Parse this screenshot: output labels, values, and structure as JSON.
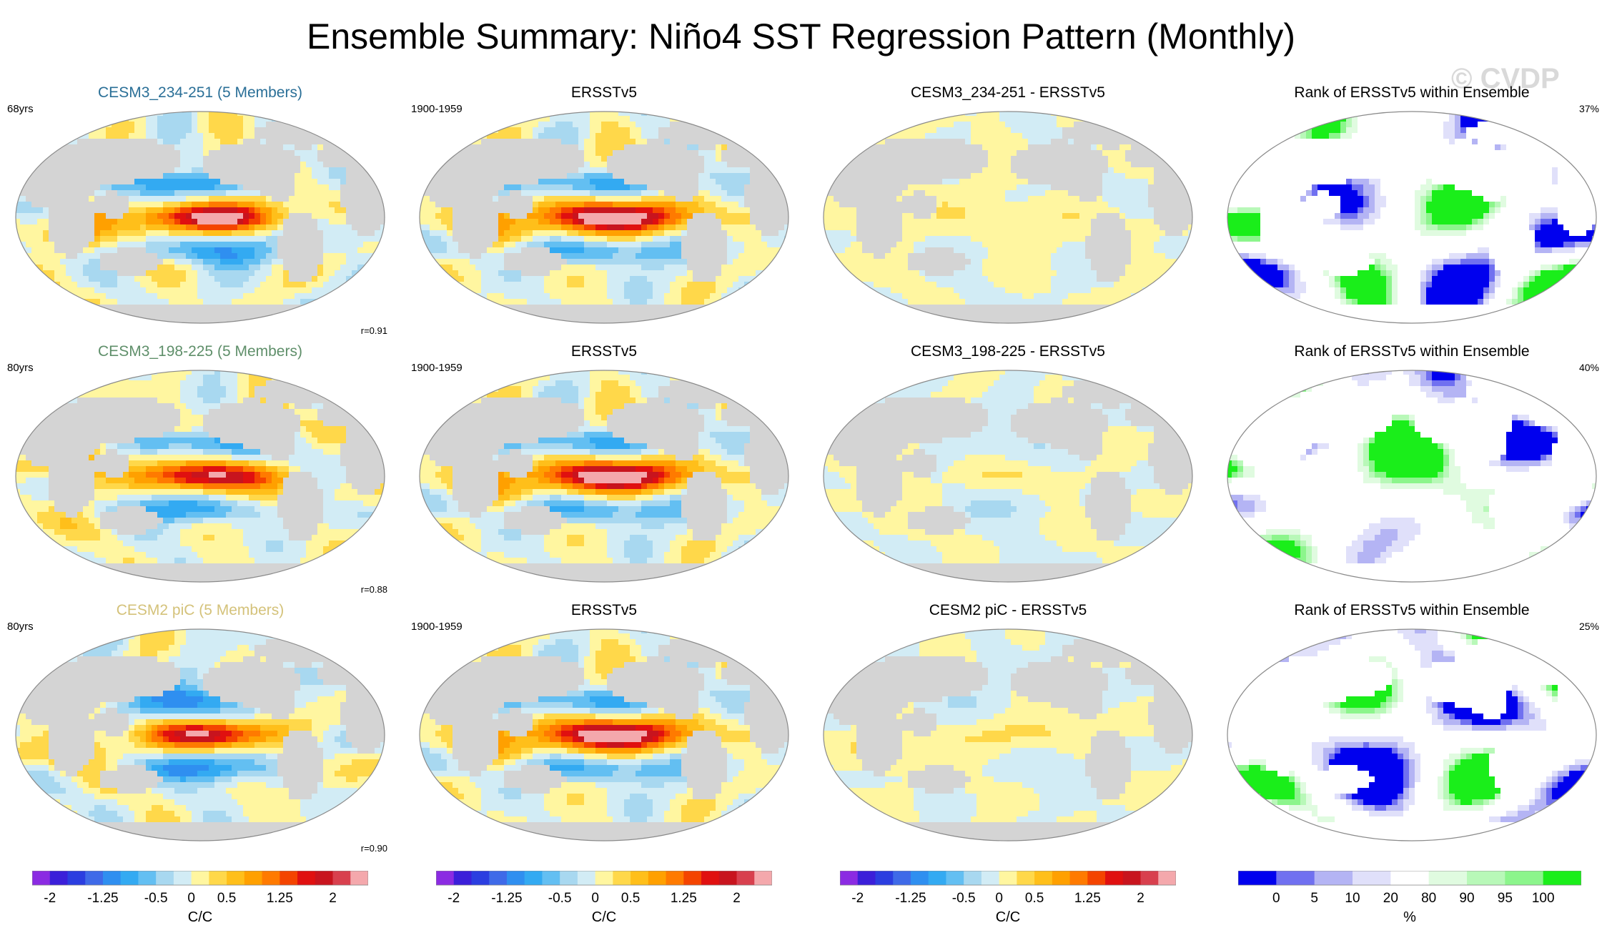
{
  "title": "Ensemble Summary: Niño4 SST Regression Pattern (Monthly)",
  "watermark": "© CVDP",
  "chart_data": {
    "type": "heatmap",
    "projection": "Robinson (global map)",
    "rows": [
      {
        "model": {
          "title": "CESM3_234-251 (5 Members)",
          "title_color": "#2a6f97",
          "left_label": "68yrs",
          "corr": "r=0.91",
          "nino_amp": 1.0,
          "pattern_phase": 0.0
        },
        "obs": {
          "title": "ERSSTv5",
          "left_label": "1900-1959",
          "nino_amp": 1.05,
          "pattern_phase": 0.7
        },
        "diff": {
          "title": "CESM3_234-251 - ERSSTv5",
          "nino_amp": 0.15,
          "pattern_phase": 1.3
        },
        "rank": {
          "title": "Rank of ERSSTv5 within Ensemble",
          "percent": "37%",
          "pattern_phase": 0.3
        }
      },
      {
        "model": {
          "title": "CESM3_198-225 (5 Members)",
          "title_color": "#5f8f6a",
          "left_label": "80yrs",
          "corr": "r=0.88",
          "nino_amp": 0.95,
          "pattern_phase": 1.9
        },
        "obs": {
          "title": "ERSSTv5",
          "left_label": "1900-1959",
          "nino_amp": 1.05,
          "pattern_phase": 0.7
        },
        "diff": {
          "title": "CESM3_198-225 - ERSSTv5",
          "nino_amp": 0.35,
          "pattern_phase": 2.6
        },
        "rank": {
          "title": "Rank of ERSSTv5 within Ensemble",
          "percent": "40%",
          "pattern_phase": 1.6
        }
      },
      {
        "model": {
          "title": "CESM2 piC (5 Members)",
          "title_color": "#d4c27a",
          "left_label": "80yrs",
          "corr": "r=0.90",
          "nino_amp": 1.0,
          "pattern_phase": 3.1
        },
        "obs": {
          "title": "ERSSTv5",
          "left_label": "1900-1959",
          "nino_amp": 1.05,
          "pattern_phase": 0.7
        },
        "diff": {
          "title": "CESM2 piC - ERSSTv5",
          "nino_amp": 0.3,
          "pattern_phase": 3.8
        },
        "rank": {
          "title": "Rank of ERSSTv5 within Ensemble",
          "percent": "25%",
          "pattern_phase": 2.7
        }
      }
    ],
    "regression_colorbar": {
      "label": "C/C",
      "levels": [
        -2,
        -1.75,
        -1.5,
        -1.25,
        -1,
        -0.75,
        -0.5,
        -0.25,
        0,
        0.25,
        0.5,
        0.75,
        1,
        1.25,
        1.5,
        1.75,
        2
      ],
      "tick_labels": [
        "-2",
        "-1.25",
        "-0.5",
        "0",
        "0.5",
        "1.25",
        "2"
      ],
      "tick_values": [
        -2,
        -1.25,
        -0.5,
        0,
        0.5,
        1.25,
        2
      ],
      "colors": [
        "#8b2be2",
        "#3b1fd9",
        "#2b3ee0",
        "#3f6ae8",
        "#2f8ff0",
        "#33aaf2",
        "#63bff2",
        "#a8d8f0",
        "#d2ecf5",
        "#fff6a0",
        "#ffd84a",
        "#ffbf1a",
        "#ffa000",
        "#ff7a00",
        "#f44400",
        "#e01010",
        "#c8141e",
        "#d8404e",
        "#f4a8ac"
      ]
    },
    "rank_colorbar": {
      "label": "%",
      "levels": [
        0,
        5,
        10,
        20,
        80,
        90,
        95,
        100
      ],
      "tick_labels": [
        "0",
        "5",
        "10",
        "20",
        "80",
        "90",
        "95",
        "100"
      ],
      "colors": [
        "#0000ee",
        "#7070f0",
        "#b4b4f4",
        "#e0e0fa",
        "#ffffff",
        "#e0fbe0",
        "#b8f8b8",
        "#8cf58c",
        "#1aee1a"
      ]
    }
  }
}
